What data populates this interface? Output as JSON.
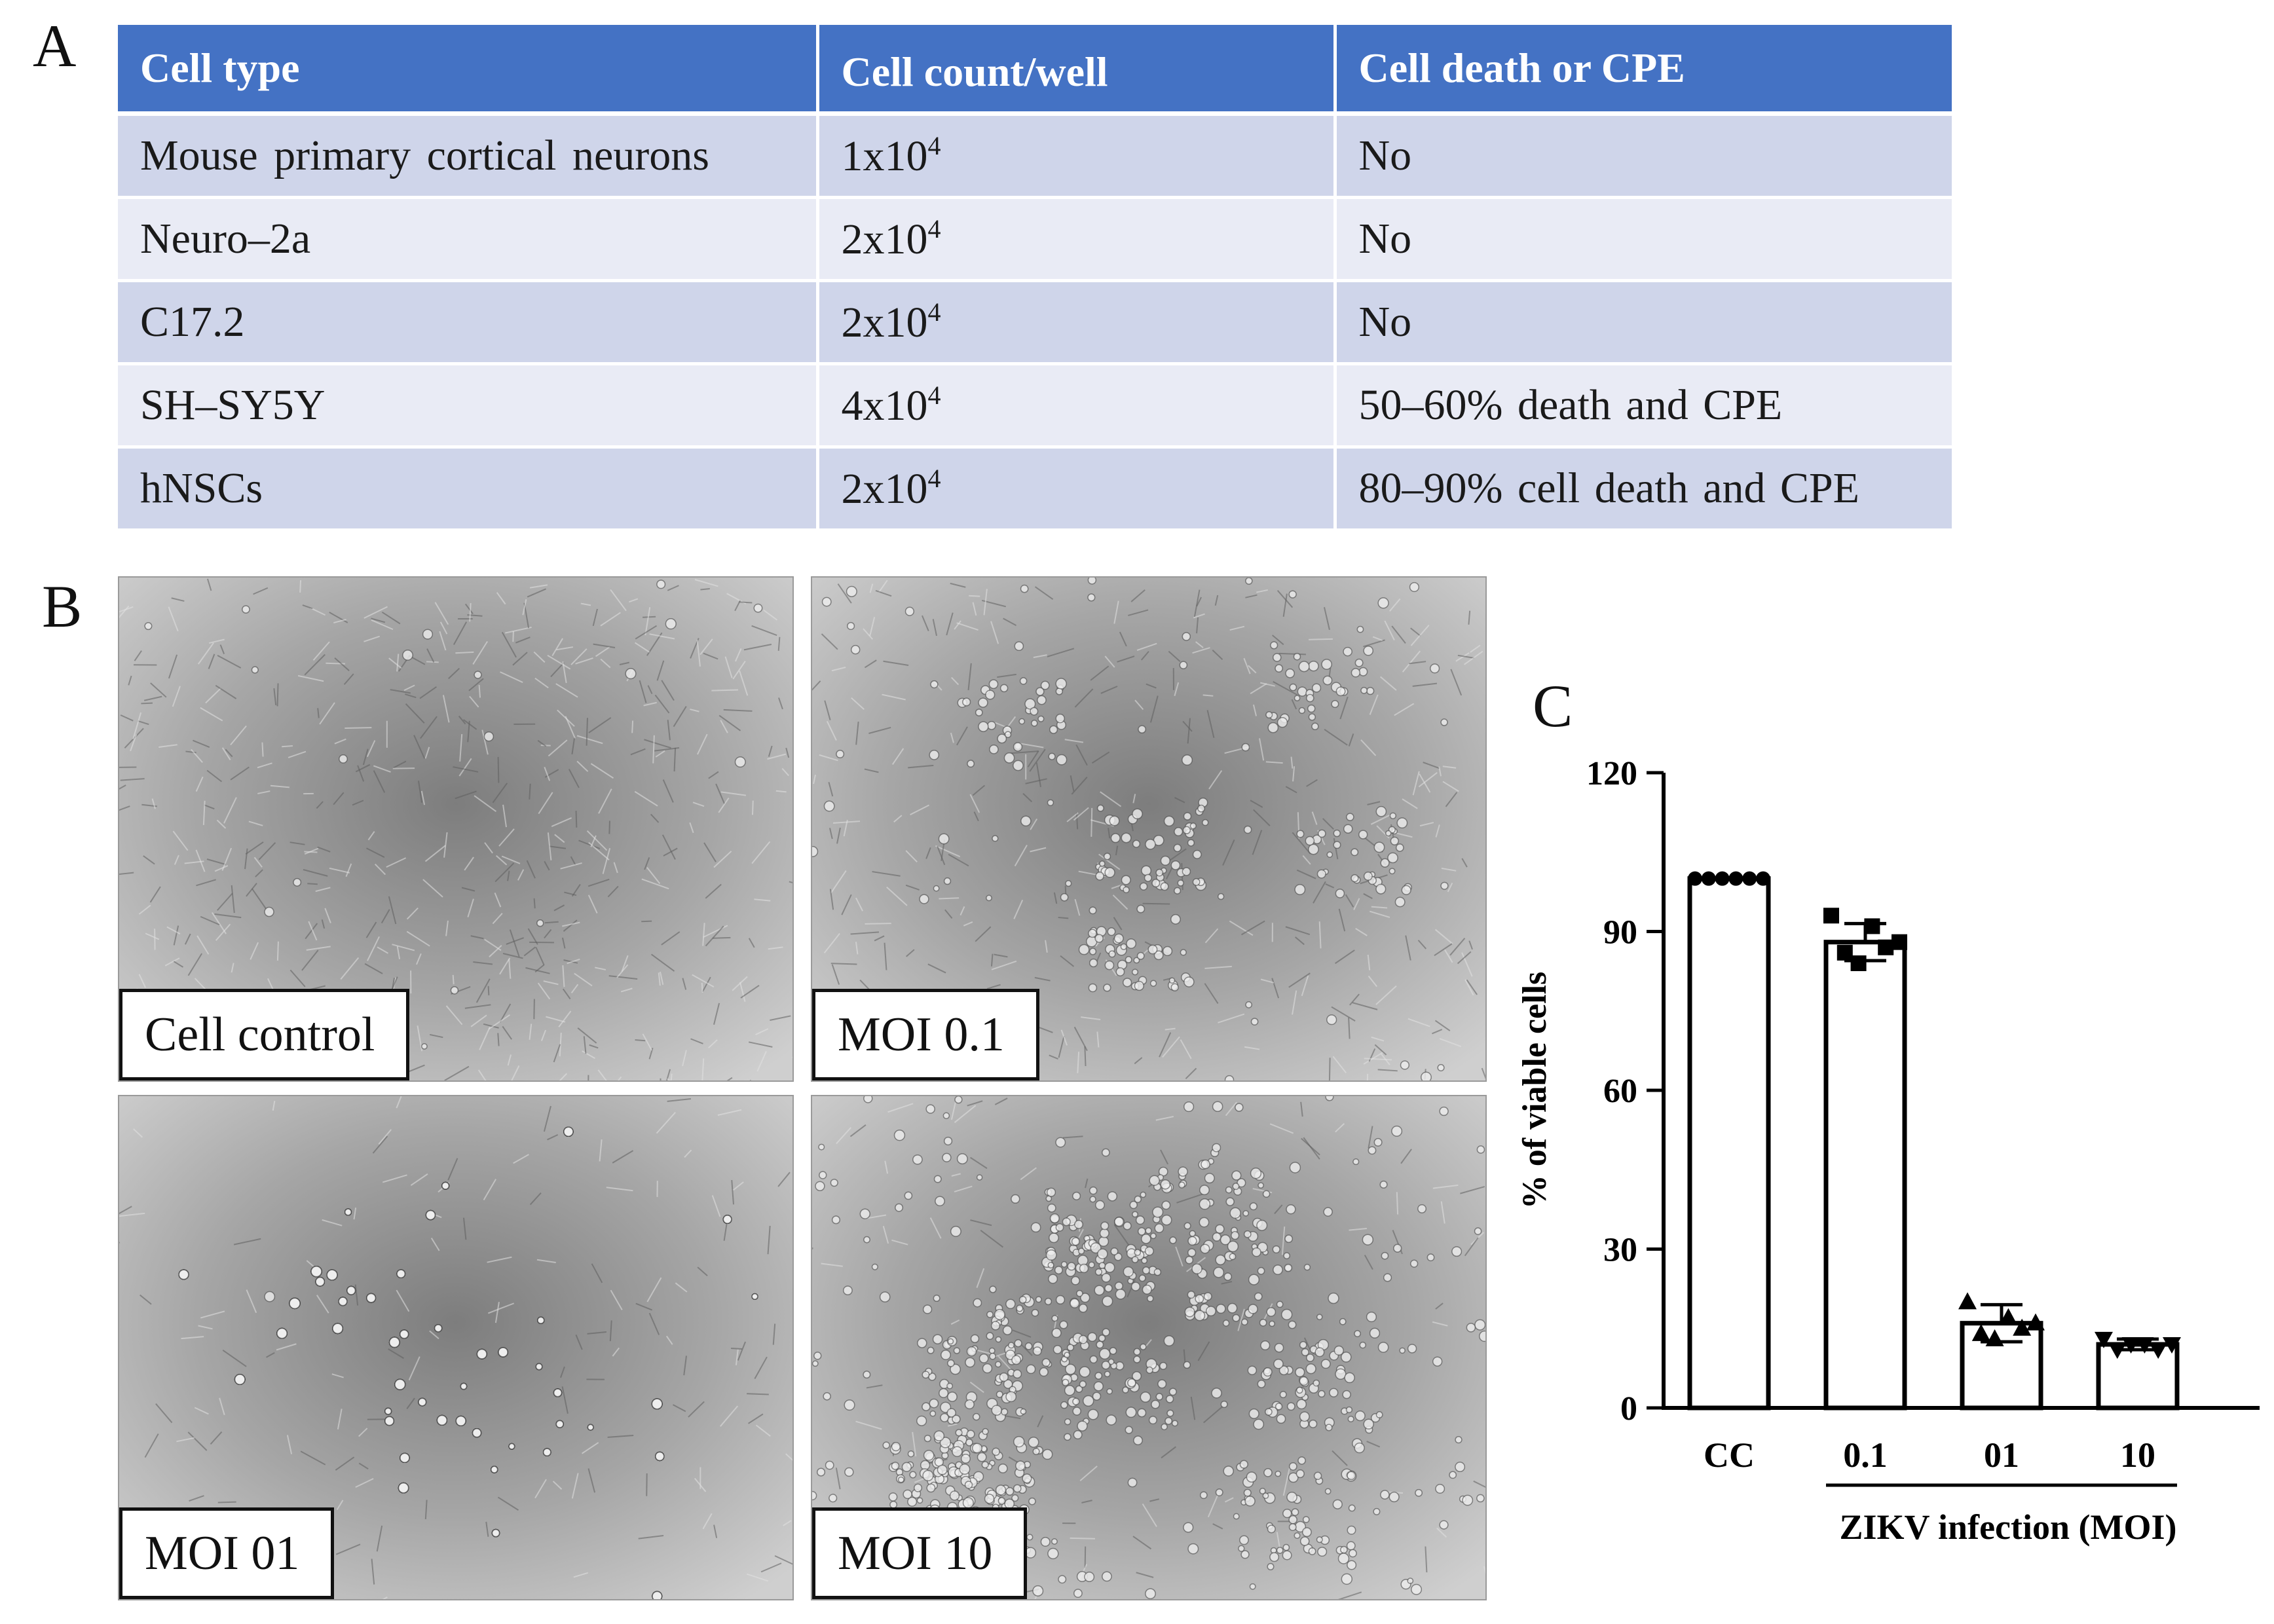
{
  "panel_a": {
    "label": "A",
    "headers": [
      "Cell type",
      "Cell count/well",
      "Cell death or CPE"
    ],
    "rows": [
      {
        "cell_type": "Mouse primary cortical neurons",
        "count_base": "1x10",
        "count_exp": "4",
        "death": "No"
      },
      {
        "cell_type": "Neuro–2a",
        "count_base": "2x10",
        "count_exp": "4",
        "death": "No"
      },
      {
        "cell_type": "C17.2",
        "count_base": "2x10",
        "count_exp": "4",
        "death": "No"
      },
      {
        "cell_type": "SH–SY5Y",
        "count_base": "4x10",
        "count_exp": "4",
        "death": "50–60% death and CPE"
      },
      {
        "cell_type": "hNSCs",
        "count_base": "2x10",
        "count_exp": "4",
        "death": "80–90% cell death and CPE"
      }
    ],
    "colors": {
      "header": "#4472c4",
      "row_dark": "#cfd5ea",
      "row_light": "#e9ebf5"
    }
  },
  "panel_b": {
    "label": "B",
    "images": [
      {
        "label": "Cell control",
        "cell_density": "confluent"
      },
      {
        "label": "MOI 0.1",
        "cell_density": "moderate CPE"
      },
      {
        "label": "MOI 01",
        "cell_density": "severe CPE"
      },
      {
        "label": "MOI 10",
        "cell_density": "severe CPE"
      }
    ]
  },
  "panel_c": {
    "label": "C"
  },
  "chart_data": {
    "type": "bar",
    "categories": [
      "CC",
      "0.1",
      "01",
      "10"
    ],
    "values": [
      100,
      88,
      16,
      12
    ],
    "error": [
      0,
      3.5,
      3.5,
      1
    ],
    "points": [
      [
        100,
        100,
        100,
        100,
        100,
        100
      ],
      [
        93,
        86,
        84,
        91,
        87,
        88
      ],
      [
        20,
        14,
        13,
        17,
        15,
        16
      ],
      [
        13,
        11,
        12,
        12,
        11,
        12
      ]
    ],
    "point_markers": [
      "circle",
      "square",
      "triangle-up",
      "triangle-down"
    ],
    "ylabel": "% of viable cells",
    "xlabel": "ZIKV infection (MOI)",
    "bracket_label": "ZIKV infection (MOI)",
    "yticks": [
      0,
      30,
      60,
      90,
      120
    ],
    "ylim": [
      0,
      120
    ],
    "grid": false
  }
}
